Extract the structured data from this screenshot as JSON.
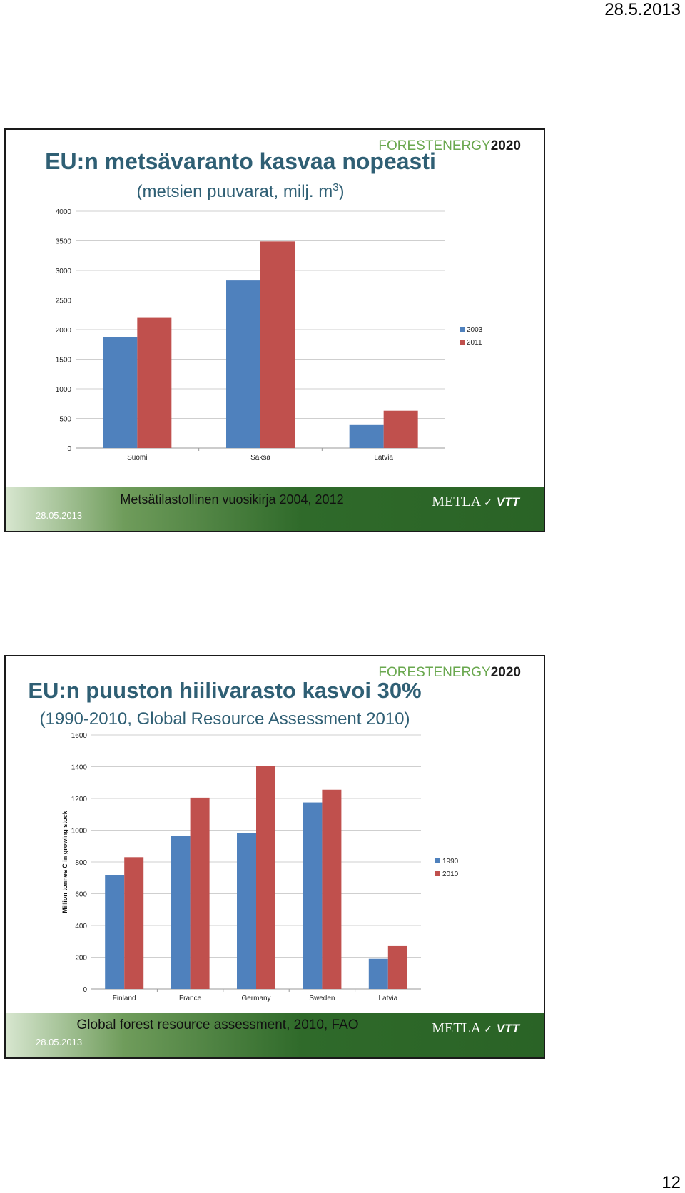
{
  "page": {
    "date": "28.5.2013",
    "number": "12"
  },
  "brand": {
    "logo_part1": "FORESTENERGY",
    "logo_part2": "2020",
    "footer_logo": "METLA",
    "footer_logo2": "VTT"
  },
  "colors": {
    "series_a": "#4f81bd",
    "series_b": "#c0504d",
    "title": "#2f5f74",
    "footer_green": "#2f6a2a"
  },
  "slides": [
    {
      "title": "EU:n metsävaranto kasvaa nopeasti",
      "subtitle_prefix": "(metsien puuvarat, milj. m",
      "subtitle_sup": "3",
      "subtitle_suffix": ")",
      "footer_date": "28.05.2013",
      "source": "Metsätilastollinen vuosikirja 2004, 2012"
    },
    {
      "title": "EU:n puuston hiilivarasto kasvoi 30%",
      "subtitle": "(1990-2010, Global Resource Assessment 2010)",
      "footer_date": "28.05.2013",
      "source": "Global forest resource assessment, 2010, FAO"
    }
  ],
  "chart_data": [
    {
      "type": "bar",
      "title": "",
      "xlabel": "",
      "ylabel": "",
      "categories": [
        "Suomi",
        "Saksa",
        "Latvia"
      ],
      "series": [
        {
          "name": "2003",
          "values": [
            1870,
            2830,
            400
          ]
        },
        {
          "name": "2011",
          "values": [
            2210,
            3490,
            630
          ]
        }
      ],
      "ylim": [
        0,
        4000
      ],
      "yticks": [
        0,
        500,
        1000,
        1500,
        2000,
        2500,
        3000,
        3500,
        4000
      ],
      "grid": true,
      "legend": "right"
    },
    {
      "type": "bar",
      "title": "",
      "xlabel": "",
      "ylabel": "Million tonnes C in growing stock",
      "categories": [
        "Finland",
        "France",
        "Germany",
        "Sweden",
        "Latvia"
      ],
      "series": [
        {
          "name": "1990",
          "values": [
            715,
            965,
            980,
            1175,
            190
          ]
        },
        {
          "name": "2010",
          "values": [
            830,
            1205,
            1405,
            1255,
            270
          ]
        }
      ],
      "ylim": [
        0,
        1600
      ],
      "yticks": [
        0,
        200,
        400,
        600,
        800,
        1000,
        1200,
        1400,
        1600
      ],
      "grid": true,
      "legend": "right"
    }
  ]
}
